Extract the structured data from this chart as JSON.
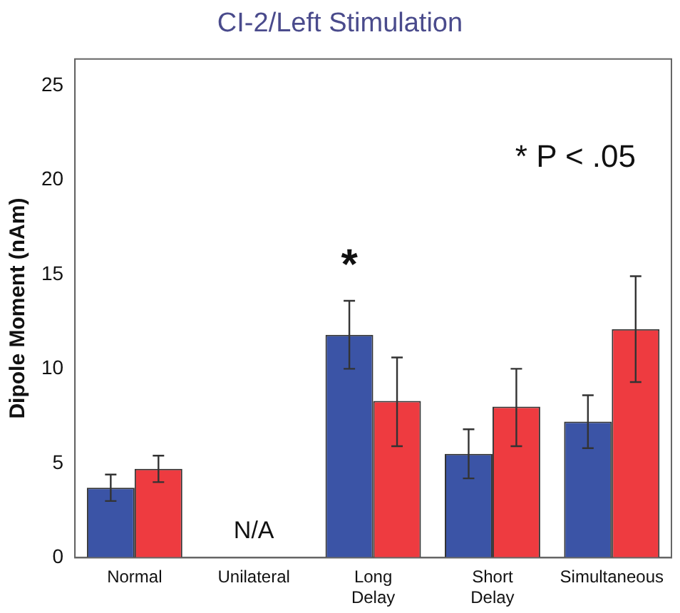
{
  "chart_data": {
    "type": "bar",
    "title": "CI-2/Left Stimulation",
    "ylabel": "Dipole Moment (nAm)",
    "categories": [
      "Normal",
      "Unilateral",
      "Long\nDelay",
      "Short\nDelay",
      "Simultaneous"
    ],
    "series": [
      {
        "color": "#3b54a6",
        "values": [
          3.7,
          null,
          11.8,
          5.5,
          7.2
        ],
        "errors": [
          [
            3.0,
            4.4
          ],
          null,
          [
            10.0,
            13.6
          ],
          [
            4.2,
            6.8
          ],
          [
            5.8,
            8.6
          ]
        ]
      },
      {
        "color": "#ee3b40",
        "values": [
          4.7,
          null,
          8.3,
          8.0,
          12.1
        ],
        "errors": [
          [
            4.0,
            5.4
          ],
          null,
          [
            5.9,
            10.6
          ],
          [
            5.9,
            10.0
          ],
          [
            9.3,
            14.9
          ]
        ]
      }
    ],
    "ylim": [
      0,
      26.4
    ],
    "yticks": [
      0,
      5,
      10,
      15,
      20,
      25
    ],
    "grid": false,
    "legend": false,
    "annotations": [
      "N/A",
      "*",
      "* P < .05"
    ]
  }
}
